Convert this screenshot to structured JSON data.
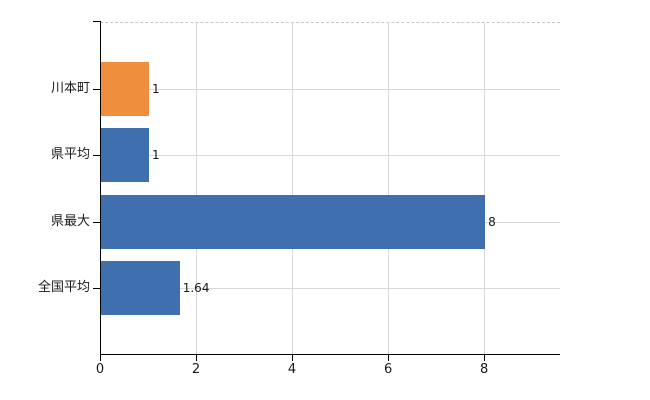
{
  "chart_data": {
    "type": "bar",
    "orientation": "horizontal",
    "title": "",
    "xlabel": "",
    "ylabel": "",
    "categories": [
      "川本町",
      "県平均",
      "県最大",
      "全国平均"
    ],
    "values": [
      1,
      1,
      8,
      1.64
    ],
    "value_labels": [
      "1",
      "1",
      "8",
      "1.64"
    ],
    "bar_colors": [
      "#ef8e3c",
      "#3f6fae",
      "#3f6fae",
      "#3f6fae"
    ],
    "x_ticks": [
      0,
      2,
      4,
      6,
      8
    ],
    "x_tick_labels": [
      "0",
      "2",
      "4",
      "6",
      "8"
    ],
    "xlim": [
      0,
      9.58
    ],
    "grid": true,
    "legend": false,
    "colors": {
      "gridline": "#d9d9d9",
      "top_border_dashed": "#c9c9c9",
      "axis": "#000000",
      "text": "#1a1a1a",
      "background": "#ffffff",
      "accent_orange": "#ef8e3c",
      "accent_blue": "#3f6fae"
    }
  }
}
